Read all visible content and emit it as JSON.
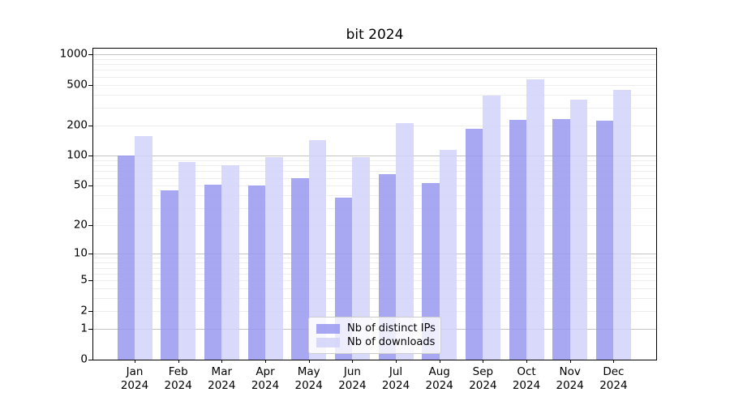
{
  "chart_data": {
    "type": "bar",
    "title": "bit 2024",
    "categories": [
      "Jan",
      "Feb",
      "Mar",
      "Apr",
      "May",
      "Jun",
      "Jul",
      "Aug",
      "Sep",
      "Oct",
      "Nov",
      "Dec"
    ],
    "category_year": "2024",
    "series": [
      {
        "name": "Nb of distinct IPs",
        "color": "#9898f0",
        "values": [
          100,
          45,
          51,
          50,
          60,
          38,
          65,
          53,
          185,
          225,
          230,
          220
        ]
      },
      {
        "name": "Nb of downloads",
        "color": "#d2d2fa",
        "values": [
          155,
          86,
          80,
          96,
          143,
          96,
          210,
          115,
          390,
          565,
          360,
          450
        ]
      }
    ],
    "yscale": "log1p",
    "ylim": [
      0,
      1140
    ],
    "ytick_labels": [
      "0",
      "1",
      "2",
      "5",
      "10",
      "20",
      "50",
      "100",
      "200",
      "500",
      "1000"
    ],
    "ytick_values": [
      0,
      1,
      2,
      5,
      10,
      20,
      50,
      100,
      200,
      500,
      1000
    ],
    "grid": "major-and-minor",
    "legend_position": "lower center",
    "colors": {
      "major_grid": "#c3c3c3",
      "minor_grid": "#ededed",
      "axis": "#000000",
      "background": "#ffffff"
    }
  }
}
